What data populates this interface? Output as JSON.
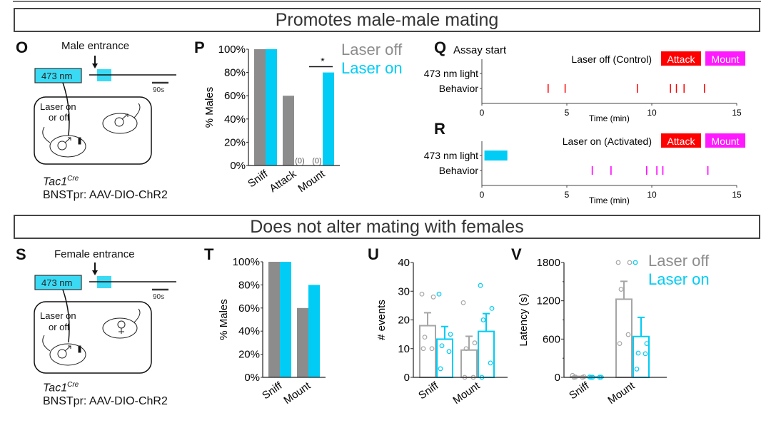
{
  "colors": {
    "laser_off": "#8c8c8c",
    "laser_on": "#00ccf5",
    "attack": "#ff0000",
    "mount": "#ff19ff",
    "light_box": "#3bdaf4"
  },
  "sections": {
    "top_title": "Promotes male-male mating",
    "bottom_title": "Does not alter mating with females"
  },
  "panel_labels": {
    "O": "O",
    "P": "P",
    "Q": "Q",
    "R": "R",
    "S": "S",
    "T": "T",
    "U": "U",
    "V": "V"
  },
  "schematic_O": {
    "entrance_label": "Male entrance",
    "laser_box": "473 nm",
    "scale_bar": "90s",
    "arena_text_1": "Laser on",
    "arena_text_2": "or off",
    "intruder_symbol": "♂",
    "resident_symbol": "♂",
    "genotype": "Tac1",
    "genotype_sup": "Cre",
    "injection": "BNSTpr: AAV-DIO-ChR2"
  },
  "schematic_S": {
    "entrance_label": "Female entrance",
    "laser_box": "473 nm",
    "scale_bar": "90s",
    "arena_text_1": "Laser on",
    "arena_text_2": "or off",
    "intruder_symbol": "♀",
    "resident_symbol": "♂",
    "genotype": "Tac1",
    "genotype_sup": "Cre",
    "injection": "BNSTpr: AAV-DIO-ChR2"
  },
  "legend_top": {
    "off": "Laser off",
    "on": "Laser on"
  },
  "legend_bottom": {
    "off": "Laser off",
    "on": "Laser on"
  },
  "raster": {
    "assay_start": "Assay start",
    "row_light": "473 nm light",
    "row_behavior": "Behavior",
    "attack_label": "Attack",
    "mount_label": "Mount",
    "xlabel": "Time (min)",
    "xticks": [
      "0",
      "5",
      "10",
      "15"
    ]
  },
  "chart_data": [
    {
      "id": "P",
      "type": "bar",
      "title": "",
      "ylabel": "% Males",
      "xlabel": "",
      "categories": [
        "Sniff",
        "Attack",
        "Mount"
      ],
      "series": [
        {
          "name": "Laser off",
          "values": [
            100,
            60,
            0
          ]
        },
        {
          "name": "Laser on",
          "values": [
            100,
            0,
            80
          ]
        }
      ],
      "yticks": [
        "0%",
        "20%",
        "40%",
        "60%",
        "80%",
        "100%"
      ],
      "ylim": [
        0,
        100
      ],
      "annotations": [
        {
          "text": "(0)",
          "category": "Attack",
          "series": "Laser on"
        },
        {
          "text": "(0)",
          "category": "Mount",
          "series": "Laser off"
        },
        {
          "text": "*",
          "category": "Mount"
        }
      ]
    },
    {
      "id": "Q",
      "type": "scatter",
      "title": "Laser off (Control)",
      "xlabel": "Time (min)",
      "xlim": [
        0,
        15
      ],
      "light_on": [],
      "attack_times": [
        3.9,
        4.9,
        9.15,
        11.1,
        11.45,
        11.9,
        13.1
      ],
      "mount_times": []
    },
    {
      "id": "R",
      "type": "scatter",
      "title": "Laser on (Activated)",
      "xlabel": "Time (min)",
      "xlim": [
        0,
        15
      ],
      "light_on": [
        [
          0.15,
          1.5
        ]
      ],
      "attack_times": [],
      "mount_times": [
        6.5,
        7.6,
        9.7,
        10.3,
        10.65,
        13.3
      ]
    },
    {
      "id": "T",
      "type": "bar",
      "ylabel": "% Males",
      "categories": [
        "Sniff",
        "Mount"
      ],
      "series": [
        {
          "name": "Laser off",
          "values": [
            100,
            60
          ]
        },
        {
          "name": "Laser on",
          "values": [
            100,
            80
          ]
        }
      ],
      "yticks": [
        "0%",
        "20%",
        "40%",
        "60%",
        "80%",
        "100%"
      ],
      "ylim": [
        0,
        100
      ]
    },
    {
      "id": "U",
      "type": "bar",
      "ylabel": "# events",
      "categories": [
        "Sniff",
        "Mount"
      ],
      "series": [
        {
          "name": "Laser off",
          "means": [
            18,
            9.5
          ],
          "sem": [
            4.5,
            4.8
          ],
          "points": [
            [
              29,
              28,
              14,
              10,
              10
            ],
            [
              26,
              12,
              10,
              0,
              0
            ]
          ]
        },
        {
          "name": "Laser on",
          "means": [
            13.3,
            16
          ],
          "sem": [
            4.4,
            6.2
          ],
          "points": [
            [
              29,
              15,
              11,
              9,
              3
            ],
            [
              32,
              24,
              20,
              5,
              0
            ]
          ]
        }
      ],
      "yticks": [
        "0",
        "10",
        "20",
        "30",
        "40"
      ],
      "ylim": [
        0,
        40
      ]
    },
    {
      "id": "V",
      "type": "bar",
      "ylabel": "Latency (s)",
      "categories": [
        "Sniff",
        "Mount"
      ],
      "series": [
        {
          "name": "Laser off",
          "means": [
            10,
            1225
          ],
          "sem": [
            5,
            280
          ],
          "points": [
            [
              30,
              10,
              5,
              0,
              0
            ],
            [
              1800,
              1800,
              1380,
              670,
              530
            ]
          ]
        },
        {
          "name": "Laser on",
          "means": [
            3,
            640
          ],
          "sem": [
            1,
            300
          ],
          "points": [
            [
              5,
              3,
              2,
              2,
              1
            ],
            [
              1800,
              530,
              380,
              370,
              130
            ]
          ]
        }
      ],
      "yticks": [
        "0",
        "600",
        "1200",
        "1800"
      ],
      "ylim": [
        0,
        1800
      ]
    }
  ]
}
